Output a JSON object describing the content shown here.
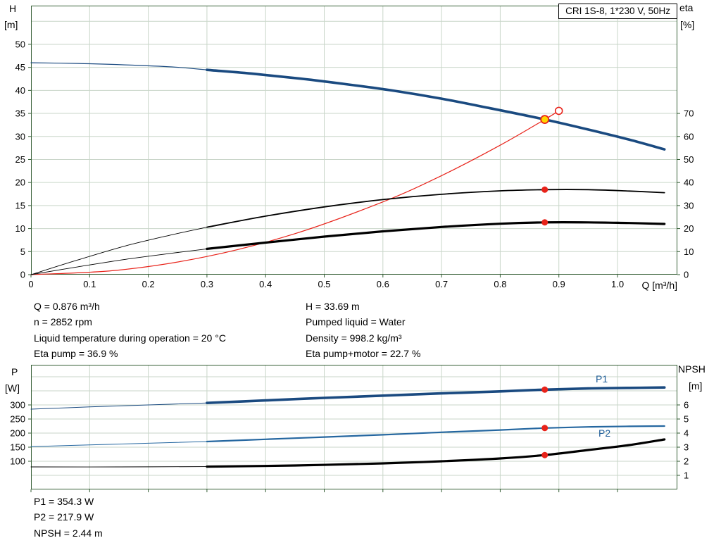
{
  "title_box": "CRI 1S-8, 1*230 V, 50Hz",
  "axis_titles": {
    "h": "H",
    "h_unit": "[m]",
    "eta": "eta",
    "eta_unit": "[%]",
    "q": "Q [m³/h]",
    "p": "P",
    "p_unit": "[W]",
    "npsh": "NPSH",
    "npsh_unit": "[m]"
  },
  "curve_labels": {
    "p1": "P1",
    "p2": "P2"
  },
  "operating_data": {
    "left": [
      "Q = 0.876 m³/h",
      "n = 2852 rpm",
      "Liquid temperature during operation = 20 °C",
      "Eta pump = 36.9 %"
    ],
    "right": [
      "H = 33.69 m",
      "Pumped liquid = Water",
      "Density = 998.2 kg/m³",
      "Eta pump+motor = 22.7 %"
    ]
  },
  "results": [
    "P1 = 354.3 W",
    "P2 = 217.9 W",
    "NPSH = 2.44 m"
  ],
  "colors": {
    "head_blue": "#1a4a80",
    "p2_blue": "#2567a0",
    "red": "#e8231a",
    "yellow": "#ffd500",
    "grid": "#c9d6c9",
    "border": "#355e35",
    "label_blue": "#1f5d99"
  },
  "chart_data": [
    {
      "type": "line",
      "title": "CRI 1S-8, 1*230 V, 50Hz",
      "x": {
        "label": "Q [m³/h]",
        "min": 0,
        "max": 1.102,
        "ticks": [
          0,
          0.1,
          0.2,
          0.3,
          0.4,
          0.5,
          0.6,
          0.7,
          0.8,
          0.9,
          1.0
        ],
        "labels": [
          "0",
          "0.1",
          "0.2",
          "0.3",
          "0.4",
          "0.5",
          "0.6",
          "0.7",
          "0.8",
          "0.9",
          "1.0"
        ],
        "grid": [
          0.1,
          0.2,
          0.3,
          0.4,
          0.5,
          0.6,
          0.7,
          0.8,
          0.9,
          1.0
        ]
      },
      "y_left": {
        "label": "H [m]",
        "min": 0,
        "max": 58.4,
        "ticks": [
          0,
          5,
          10,
          15,
          20,
          25,
          30,
          35,
          40,
          45,
          50
        ],
        "labels": [
          "0",
          "5",
          "10",
          "15",
          "20",
          "25",
          "30",
          "35",
          "40",
          "45",
          "50"
        ]
      },
      "y_right": {
        "label": "eta [%]",
        "min": 0,
        "max": 116.8,
        "ticks": [
          0,
          10,
          20,
          30,
          40,
          50,
          60,
          70
        ],
        "labels": [
          "0",
          "10",
          "20",
          "30",
          "40",
          "50",
          "60",
          "70"
        ]
      },
      "y_grid": [
        5,
        10,
        15,
        20,
        25,
        30,
        35,
        40,
        45,
        50,
        55
      ],
      "grid_color": "#c9d6c9",
      "border_color": "#355e35",
      "series": [
        {
          "name": "head-curve-min-flow",
          "axis": "left",
          "color": "#1a4a80",
          "width": 1.2,
          "points": [
            [
              0,
              46.0
            ],
            [
              0.08,
              45.85
            ],
            [
              0.16,
              45.55
            ],
            [
              0.24,
              45.1
            ],
            [
              0.3,
              44.45
            ]
          ]
        },
        {
          "name": "head-curve",
          "axis": "left",
          "color": "#1a4a80",
          "width": 3.6,
          "points": [
            [
              0.3,
              44.45
            ],
            [
              0.38,
              43.6
            ],
            [
              0.46,
              42.55
            ],
            [
              0.54,
              41.3
            ],
            [
              0.62,
              39.9
            ],
            [
              0.7,
              38.2
            ],
            [
              0.78,
              36.2
            ],
            [
              0.876,
              33.69
            ],
            [
              0.96,
              31.2
            ],
            [
              1.02,
              29.3
            ],
            [
              1.08,
              27.2
            ]
          ]
        },
        {
          "name": "duty-system-line",
          "axis": "left",
          "color": "#e8231a",
          "width": 1.2,
          "points": [
            [
              0,
              0
            ],
            [
              0.15,
              1.0
            ],
            [
              0.3,
              3.95
            ],
            [
              0.45,
              8.9
            ],
            [
              0.6,
              15.8
            ],
            [
              0.7,
              21.5
            ],
            [
              0.8,
              28.1
            ],
            [
              0.876,
              33.69
            ],
            [
              0.9,
              35.56
            ]
          ]
        },
        {
          "name": "eta-pump-min-flow",
          "axis": "right",
          "color": "#000000",
          "width": 0.9,
          "points": [
            [
              0,
              0
            ],
            [
              0.08,
              6.4
            ],
            [
              0.16,
              12.4
            ],
            [
              0.24,
              17.3
            ],
            [
              0.3,
              20.6
            ]
          ]
        },
        {
          "name": "eta-pump-curve",
          "axis": "right",
          "color": "#000000",
          "width": 1.8,
          "points": [
            [
              0.3,
              20.6
            ],
            [
              0.4,
              25.4
            ],
            [
              0.5,
              29.4
            ],
            [
              0.6,
              32.6
            ],
            [
              0.7,
              34.9
            ],
            [
              0.8,
              36.4
            ],
            [
              0.876,
              36.9
            ],
            [
              0.95,
              36.9
            ],
            [
              1.02,
              36.3
            ],
            [
              1.08,
              35.6
            ]
          ]
        },
        {
          "name": "eta-pump-motor-min-flow",
          "axis": "right",
          "color": "#000000",
          "width": 0.9,
          "points": [
            [
              0,
              0
            ],
            [
              0.08,
              3.4
            ],
            [
              0.16,
              6.6
            ],
            [
              0.24,
              9.3
            ],
            [
              0.3,
              11.2
            ]
          ]
        },
        {
          "name": "eta-pump-motor-curve",
          "axis": "right",
          "color": "#000000",
          "width": 3.2,
          "points": [
            [
              0.3,
              11.2
            ],
            [
              0.4,
              13.9
            ],
            [
              0.5,
              16.5
            ],
            [
              0.6,
              18.8
            ],
            [
              0.7,
              20.7
            ],
            [
              0.8,
              22.1
            ],
            [
              0.876,
              22.7
            ],
            [
              0.95,
              22.7
            ],
            [
              1.02,
              22.4
            ],
            [
              1.08,
              22.0
            ]
          ]
        }
      ],
      "markers": [
        {
          "name": "rated-point-open-circle",
          "x": 0.9,
          "y": 35.56,
          "axis": "left",
          "r": 5,
          "fill": "#ffffff",
          "stroke": "#e8231a",
          "stroke_width": 1.6
        },
        {
          "name": "duty-point-head",
          "x": 0.876,
          "y": 33.69,
          "axis": "left",
          "r": 5.5,
          "fill": "#ffd500",
          "stroke": "#e8231a",
          "stroke_width": 1.8
        },
        {
          "name": "duty-point-eta-pump",
          "x": 0.876,
          "y": 36.9,
          "axis": "right",
          "r": 4.5,
          "fill": "#e8231a"
        },
        {
          "name": "duty-point-eta-pump-motor",
          "x": 0.876,
          "y": 22.7,
          "axis": "right",
          "r": 4.5,
          "fill": "#e8231a"
        }
      ]
    },
    {
      "type": "line",
      "title": "Power and NPSH",
      "x": {
        "label": "Q [m³/h]",
        "min": 0,
        "max": 1.102,
        "ticks": [
          0,
          0.1,
          0.2,
          0.3,
          0.4,
          0.5,
          0.6,
          0.7,
          0.8,
          0.9,
          1.0
        ],
        "grid": [
          0.1,
          0.2,
          0.3,
          0.4,
          0.5,
          0.6,
          0.7,
          0.8,
          0.9,
          1.0
        ]
      },
      "y_left": {
        "label": "P [W]",
        "min": 0,
        "max": 442.5,
        "ticks": [
          100,
          150,
          200,
          250,
          300
        ],
        "labels": [
          "100",
          "150",
          "200",
          "250",
          "300"
        ]
      },
      "y_right": {
        "label": "NPSH [m]",
        "min": 0,
        "max": 8.85,
        "ticks": [
          1,
          2,
          3,
          4,
          5,
          6
        ],
        "labels": [
          "1",
          "2",
          "3",
          "4",
          "5",
          "6"
        ]
      },
      "y_grid": [
        50,
        100,
        150,
        200,
        250,
        300,
        350,
        400
      ],
      "grid_color": "#c9d6c9",
      "border_color": "#355e35",
      "series": [
        {
          "name": "p1-min-flow",
          "axis": "left",
          "color": "#1a4a80",
          "width": 1,
          "points": [
            [
              0,
              285
            ],
            [
              0.1,
              293
            ],
            [
              0.2,
              300
            ],
            [
              0.3,
              307
            ]
          ]
        },
        {
          "name": "p1-curve",
          "axis": "left",
          "color": "#1a4a80",
          "width": 3.6,
          "points": [
            [
              0.3,
              307
            ],
            [
              0.4,
              316
            ],
            [
              0.5,
              325
            ],
            [
              0.6,
              333
            ],
            [
              0.7,
              341
            ],
            [
              0.8,
              348
            ],
            [
              0.876,
              354.3
            ],
            [
              0.95,
              358.5
            ],
            [
              1.02,
              360.5
            ],
            [
              1.08,
              362
            ]
          ]
        },
        {
          "name": "p2-min-flow",
          "axis": "left",
          "color": "#2567a0",
          "width": 1,
          "points": [
            [
              0,
              152
            ],
            [
              0.1,
              158
            ],
            [
              0.2,
              164
            ],
            [
              0.3,
              170
            ]
          ]
        },
        {
          "name": "p2-curve",
          "axis": "left",
          "color": "#2567a0",
          "width": 2.2,
          "points": [
            [
              0.3,
              170
            ],
            [
              0.4,
              178
            ],
            [
              0.5,
              186
            ],
            [
              0.6,
              194
            ],
            [
              0.7,
              203
            ],
            [
              0.8,
              211
            ],
            [
              0.876,
              217.9
            ],
            [
              0.95,
              222
            ],
            [
              1.02,
              224
            ],
            [
              1.08,
              225
            ]
          ]
        },
        {
          "name": "npsh-min-flow",
          "axis": "right",
          "color": "#000000",
          "width": 0.9,
          "points": [
            [
              0,
              1.6
            ],
            [
              0.15,
              1.6
            ],
            [
              0.3,
              1.62
            ]
          ]
        },
        {
          "name": "npsh-curve",
          "axis": "right",
          "color": "#000000",
          "width": 3.2,
          "points": [
            [
              0.3,
              1.62
            ],
            [
              0.45,
              1.7
            ],
            [
              0.6,
              1.85
            ],
            [
              0.7,
              2.0
            ],
            [
              0.8,
              2.2
            ],
            [
              0.876,
              2.44
            ],
            [
              0.95,
              2.8
            ],
            [
              1.02,
              3.15
            ],
            [
              1.08,
              3.55
            ]
          ]
        }
      ],
      "markers": [
        {
          "name": "duty-point-p1",
          "x": 0.876,
          "y": 354.3,
          "axis": "left",
          "r": 4.5,
          "fill": "#e8231a"
        },
        {
          "name": "duty-point-p2",
          "x": 0.876,
          "y": 217.9,
          "axis": "left",
          "r": 4.5,
          "fill": "#e8231a"
        },
        {
          "name": "duty-point-npsh",
          "x": 0.876,
          "y": 2.44,
          "axis": "right",
          "r": 4.5,
          "fill": "#e8231a"
        }
      ]
    }
  ]
}
